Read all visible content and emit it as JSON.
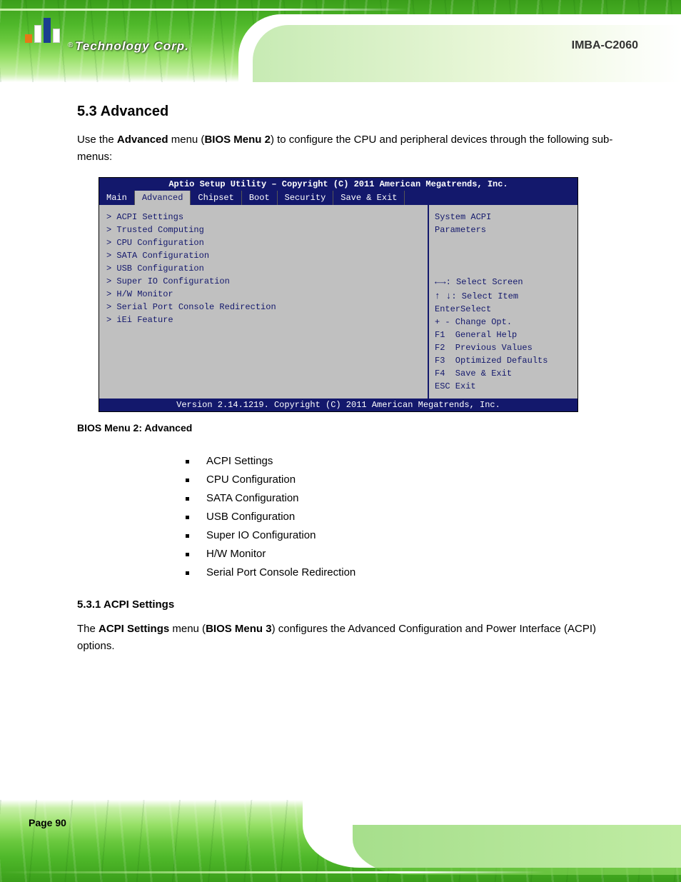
{
  "header": {
    "company": "Technology Corp.",
    "registered": "®",
    "product": "IMBA-C2060"
  },
  "section": {
    "number": "5.3",
    "title": "Advanced",
    "intro_prefix": "Use the ",
    "intro_bold": "Advanced",
    "intro_suffix": " menu (",
    "intro_ref": "BIOS Menu 2",
    "intro_end": ") to configure the CPU and peripheral devices through the following sub-menus:"
  },
  "bios": {
    "title": "Aptio Setup Utility – Copyright (C) 2011 American Megatrends, Inc.",
    "tabs": [
      "Main",
      "Advanced",
      "Chipset",
      "Boot",
      "Security",
      "Save & Exit"
    ],
    "active_tab": 1,
    "menu_items": [
      "> ACPI Settings",
      "> Trusted Computing",
      "> CPU Configuration",
      "> SATA Configuration",
      "> USB Configuration",
      "> Super IO Configuration",
      "> H/W Monitor",
      "> Serial Port Console Redirection",
      "> iEi Feature"
    ],
    "help_lines_top": [
      "System ACPI",
      "Parameters"
    ],
    "help_lines_nav": [
      {
        "arrows": "←→",
        "text": ": Select Screen"
      },
      {
        "arrows": "↑ ↓",
        "text": ": Select Item"
      },
      {
        "arrows": "",
        "text": "EnterSelect"
      },
      {
        "arrows": "",
        "text": "+ - Change Opt."
      },
      {
        "arrows": "",
        "text": "F1  General Help"
      },
      {
        "arrows": "",
        "text": "F2  Previous Values"
      },
      {
        "arrows": "",
        "text": "F3  Optimized Defaults"
      },
      {
        "arrows": "",
        "text": "F4  Save & Exit"
      },
      {
        "arrows": "",
        "text": "ESC Exit"
      }
    ],
    "footer": "Version 2.14.1219. Copyright (C) 2011 American Megatrends, Inc."
  },
  "caption": "BIOS Menu 2: Advanced",
  "bullets": [
    "ACPI Settings",
    "CPU Configuration",
    "SATA Configuration",
    "USB Configuration",
    "Super IO Configuration",
    "H/W Monitor",
    "Serial Port Console Redirection"
  ],
  "subsection": {
    "number": "5.3.1",
    "title": "ACPI Settings",
    "text_prefix": "The ",
    "text_bold": "ACPI Settings",
    "text_mid": " menu (",
    "text_ref": "BIOS Menu 3",
    "text_end": ") configures the Advanced Configuration and Power Interface (ACPI) options."
  },
  "footer": {
    "page": "Page 90"
  }
}
